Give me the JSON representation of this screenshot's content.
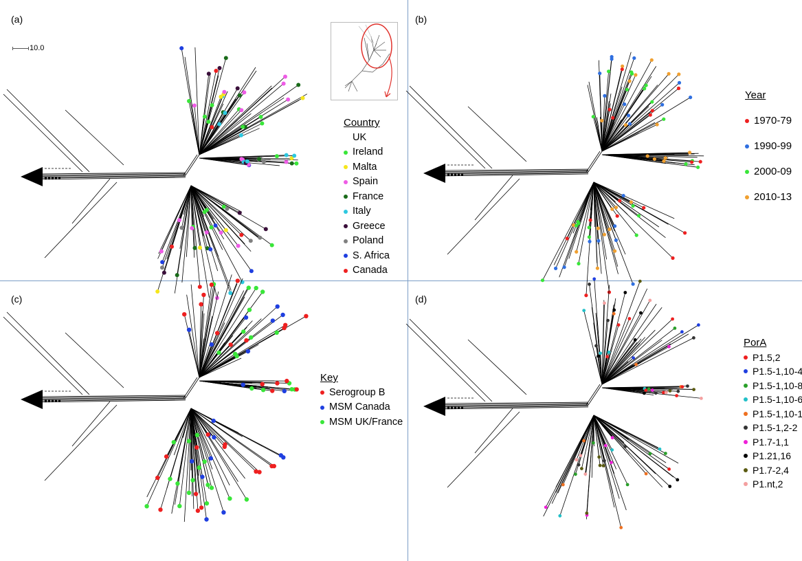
{
  "panels": {
    "a": {
      "label": "(a)",
      "scale_label": "10.0",
      "legend_title": "Country",
      "legend": [
        {
          "label": "UK",
          "color": ""
        },
        {
          "label": "Ireland",
          "color": "#39e639"
        },
        {
          "label": "Malta",
          "color": "#f5e61c"
        },
        {
          "label": "Spain",
          "color": "#ee5ce6"
        },
        {
          "label": "France",
          "color": "#1a6b1a"
        },
        {
          "label": "Italy",
          "color": "#2ec8e0"
        },
        {
          "label": "Greece",
          "color": "#3a0f3a"
        },
        {
          "label": "Poland",
          "color": "#808080"
        },
        {
          "label": "S. Africa",
          "color": "#1f3fe0"
        },
        {
          "label": "Canada",
          "color": "#ee2020"
        }
      ]
    },
    "b": {
      "label": "(b)",
      "legend_title": "Year",
      "legend": [
        {
          "label": "1970-79",
          "color": "#ee2020"
        },
        {
          "label": "1990-99",
          "color": "#2f6fe0"
        },
        {
          "label": "2000-09",
          "color": "#39e639"
        },
        {
          "label": "2010-13",
          "color": "#f0a030"
        }
      ]
    },
    "c": {
      "label": "(c)",
      "legend_title": "Key",
      "legend": [
        {
          "label": "Serogroup B",
          "color": "#ee2020"
        },
        {
          "label": "MSM Canada",
          "color": "#1f3fe0"
        },
        {
          "label": "MSM UK/France",
          "color": "#39e639"
        }
      ]
    },
    "d": {
      "label": "(d)",
      "legend_title": "PorA",
      "legend": [
        {
          "label": "P1.5,2",
          "color": "#ee2020"
        },
        {
          "label": "P1.5-1,10-4",
          "color": "#1f3fe0"
        },
        {
          "label": "P1.5-1,10-8",
          "color": "#2aa02a"
        },
        {
          "label": "P1.5-1,10-6",
          "color": "#22c0c8"
        },
        {
          "label": "P1.5-1,10-1",
          "color": "#ee7020"
        },
        {
          "label": "P1.5-1,2-2",
          "color": "#333333"
        },
        {
          "label": "P1.7-1,1",
          "color": "#ee20d8"
        },
        {
          "label": "P1.21,16",
          "color": "#000000"
        },
        {
          "label": "P1.7-2,4",
          "color": "#5a5a10"
        },
        {
          "label": "P1.nt,2",
          "color": "#f4a0a0"
        }
      ]
    }
  }
}
